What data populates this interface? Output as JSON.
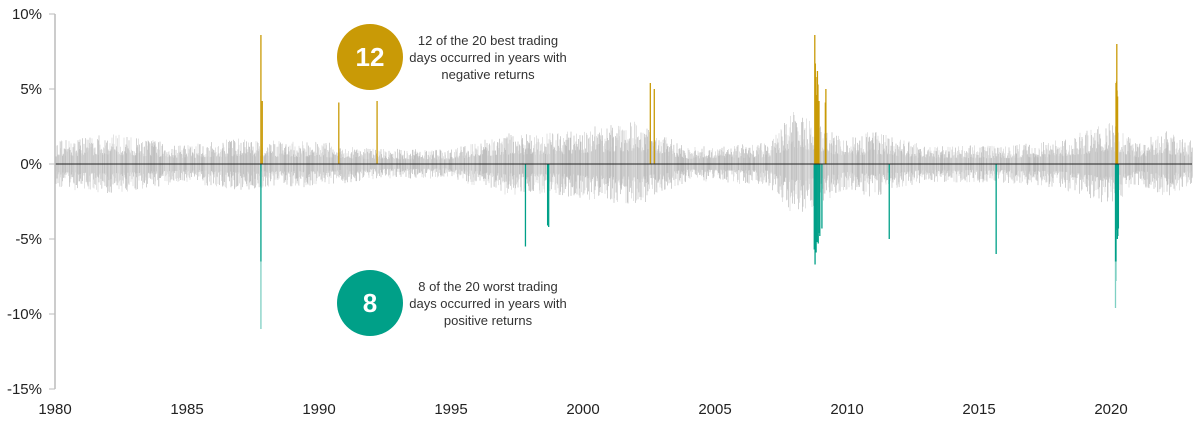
{
  "chart_data": {
    "type": "bar",
    "title": "",
    "xlabel": "",
    "ylabel": "",
    "x_range": [
      1980,
      2023.1
    ],
    "ylim": [
      -15,
      10
    ],
    "y_ticks": [
      10,
      5,
      0,
      -5,
      -10,
      -15
    ],
    "y_tick_labels": [
      "10%",
      "5%",
      "0%",
      "-5%",
      "-10%",
      "-15%"
    ],
    "x_ticks": [
      1980,
      1985,
      1990,
      1995,
      2000,
      2005,
      2010,
      2015,
      2020
    ],
    "x_tick_labels": [
      "1980",
      "1985",
      "1990",
      "1995",
      "2000",
      "2005",
      "2010",
      "2015",
      "2020"
    ],
    "grid": false,
    "colors": {
      "daily": "#b3b3b3",
      "best": "#c99a06",
      "worst": "#00a088",
      "worst_light": "#7fd0c3",
      "zero": "#222222",
      "axis": "#bbbbbb"
    },
    "typical_daily_range_by_year": {
      "1980": 2.0,
      "1982": 2.6,
      "1985": 1.6,
      "1987": 2.2,
      "1988": 2.0,
      "1990": 1.9,
      "1992": 1.3,
      "1995": 1.2,
      "1997": 2.6,
      "1999": 2.6,
      "2000": 3.0,
      "2002": 3.6,
      "2004": 1.4,
      "2007": 1.8,
      "2008": 4.5,
      "2009": 3.2,
      "2010": 2.2,
      "2011": 2.8,
      "2013": 1.5,
      "2016": 1.6,
      "2018": 2.0,
      "2020": 3.5,
      "2021": 1.8,
      "2022": 2.8,
      "2023": 2.0
    },
    "series": [
      {
        "name": "20 best trading days",
        "points": [
          [
            1987.8,
            8.6
          ],
          [
            1987.85,
            4.2
          ],
          [
            1990.75,
            4.1
          ],
          [
            1992.2,
            4.2
          ],
          [
            2002.55,
            5.4
          ],
          [
            2002.7,
            5.0
          ],
          [
            2008.78,
            8.6
          ],
          [
            2008.8,
            6.7
          ],
          [
            2008.82,
            5.8
          ],
          [
            2008.86,
            4.6
          ],
          [
            2008.9,
            5.3
          ],
          [
            2008.94,
            4.2
          ],
          [
            2009.2,
            5.0
          ],
          [
            2009.18,
            4.1
          ],
          [
            2020.19,
            5.4
          ],
          [
            2020.21,
            5.5
          ],
          [
            2020.23,
            4.9
          ],
          [
            2020.25,
            4.5
          ],
          [
            2020.22,
            8.0
          ],
          [
            2008.88,
            6.2
          ]
        ]
      },
      {
        "name": "20 worst trading days",
        "points": [
          [
            1987.8,
            -11.0
          ],
          [
            1997.82,
            -5.5
          ],
          [
            1998.66,
            -4.1
          ],
          [
            1998.7,
            -4.2
          ],
          [
            2008.76,
            -5.7
          ],
          [
            2008.79,
            -6.7
          ],
          [
            2008.83,
            -5.9
          ],
          [
            2008.87,
            -5.2
          ],
          [
            2008.91,
            -5.3
          ],
          [
            2008.95,
            -4.6
          ],
          [
            2011.6,
            -5.0
          ],
          [
            2015.65,
            -6.0
          ],
          [
            2020.17,
            -9.6
          ],
          [
            2020.19,
            -7.8
          ],
          [
            2020.2,
            -4.4
          ],
          [
            2020.24,
            -5.0
          ],
          [
            2020.26,
            -4.8
          ],
          [
            2008.97,
            -4.8
          ],
          [
            2009.05,
            -4.3
          ],
          [
            2020.28,
            -4.3
          ]
        ]
      }
    ],
    "annotations": [
      {
        "number": "12",
        "text_lines": [
          "12 of the 20 best trading",
          "days occurred in years with",
          "negative returns"
        ]
      },
      {
        "number": "8",
        "text_lines": [
          "8 of the 20 worst trading",
          "days occurred in years with",
          "positive returns"
        ]
      }
    ]
  }
}
